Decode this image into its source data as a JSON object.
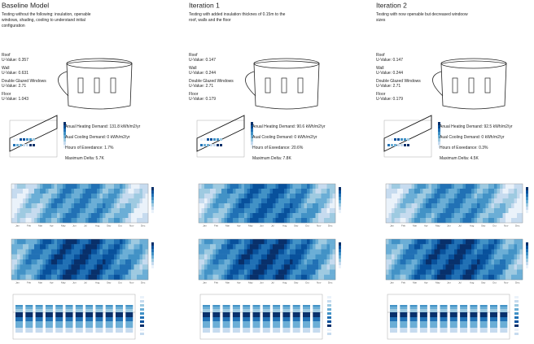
{
  "columns": [
    {
      "title": "Baseline Model",
      "description": [
        "Testing without the following: insulation, openable",
        "windows, shading, cooling to understand initial",
        "configuration"
      ],
      "uvalues": [
        [
          "Roof",
          "U-Value: 0.357"
        ],
        [
          "Wall",
          "U-Value: 0.631"
        ],
        [
          "Double Glazed Windows",
          "U-Value: 2.71"
        ],
        [
          "Floor",
          "U-Value: 1.043"
        ]
      ],
      "stats": [
        "Anual Heating Demand: 131.8 kWh/m2/yr",
        "Aual Cooling Demand: 0 kWh/m2/yr",
        "Hours of Exeedance: 1.7%",
        "Maximum Delta: 5.7K"
      ]
    },
    {
      "title": "Iteration 1",
      "description": [
        "Testing with added insulation thicknes of 0.15m to the",
        "roof, walls and the floor"
      ],
      "uvalues": [
        [
          "Roof",
          "U-Value: 0.147"
        ],
        [
          "Wall",
          "U-Value: 0.244"
        ],
        [
          "Double Glazed Windows",
          "U-Value: 2.71"
        ],
        [
          "Floor",
          "U-Value: 0.179"
        ]
      ],
      "stats": [
        "Anual Heating Demand: 90.6 kWh/m2/yr",
        "Aual Cooling Demand: 0 kWh/m2/yr",
        "Hours of Exeedance: 20.6%",
        "Maximum Delta: 7.8K"
      ]
    },
    {
      "title": "Iteration 2",
      "description": [
        "Testing with now openable but decreased windoow",
        "sizes"
      ],
      "uvalues": [
        [
          "Roof",
          "U-Value: 0.147"
        ],
        [
          "Wall",
          "U-Value: 0.244"
        ],
        [
          "Double Glazed Windows",
          "U-Value: 2.71"
        ],
        [
          "Floor",
          "U-Value: 0.179"
        ]
      ],
      "stats": [
        "Anual Heating Demand: 92.5 kWh/m2/yr",
        "Aual Cooling Demand: 0 kWh/m2/yr",
        "Hours of Exeedance: 0.3%",
        "Maximum Delta: 4.5K"
      ]
    }
  ],
  "months": [
    "Jan",
    "Feb",
    "Mar",
    "Apr",
    "May",
    "Jun",
    "Jul",
    "Aug",
    "Sep",
    "Oct",
    "Nov",
    "Dec"
  ]
}
